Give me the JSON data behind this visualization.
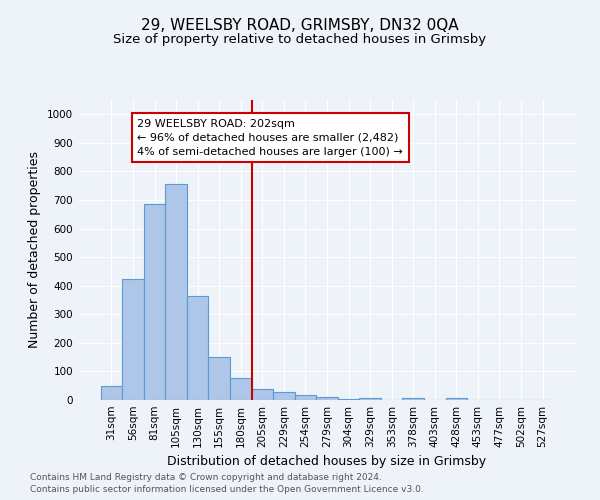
{
  "title": "29, WEELSBY ROAD, GRIMSBY, DN32 0QA",
  "subtitle": "Size of property relative to detached houses in Grimsby",
  "xlabel": "Distribution of detached houses by size in Grimsby",
  "ylabel": "Number of detached properties",
  "footnote1": "Contains HM Land Registry data © Crown copyright and database right 2024.",
  "footnote2": "Contains public sector information licensed under the Open Government Licence v3.0.",
  "bar_labels": [
    "31sqm",
    "56sqm",
    "81sqm",
    "105sqm",
    "130sqm",
    "155sqm",
    "180sqm",
    "205sqm",
    "229sqm",
    "254sqm",
    "279sqm",
    "304sqm",
    "329sqm",
    "353sqm",
    "378sqm",
    "403sqm",
    "428sqm",
    "453sqm",
    "477sqm",
    "502sqm",
    "527sqm"
  ],
  "bar_values": [
    50,
    425,
    685,
    755,
    363,
    152,
    77,
    37,
    27,
    17,
    9,
    5,
    8,
    0,
    7,
    0,
    8,
    0,
    0,
    0,
    0
  ],
  "bar_color": "#aec6e8",
  "bar_edge_color": "#5b9bd5",
  "annotation_text": "29 WEELSBY ROAD: 202sqm\n← 96% of detached houses are smaller (2,482)\n4% of semi-detached houses are larger (100) →",
  "annotation_box_color": "#ffffff",
  "annotation_box_edge_color": "#cc0000",
  "vline_color": "#cc0000",
  "ylim": [
    0,
    1050
  ],
  "yticks": [
    0,
    100,
    200,
    300,
    400,
    500,
    600,
    700,
    800,
    900,
    1000
  ],
  "background_color": "#eef2f9",
  "axes_bg_color": "#eef2f9",
  "grid_color": "#ffffff",
  "title_fontsize": 11,
  "subtitle_fontsize": 9.5,
  "label_fontsize": 9,
  "tick_fontsize": 7.5,
  "annotation_fontsize": 8
}
